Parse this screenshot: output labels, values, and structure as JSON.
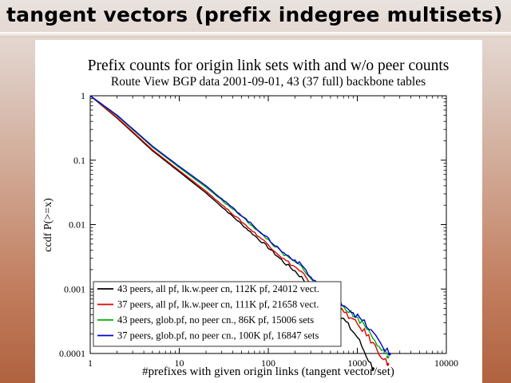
{
  "slide": {
    "title": "tangent vectors (prefix indegree multisets)"
  },
  "chart_data": {
    "type": "line",
    "title": "Prefix counts for origin link sets with and w/o peer counts",
    "subtitle": "Route View BGP data 2001-09-01, 43 (37 full) backbone tables",
    "xlabel": "#prefixes with given origin links (tangent vector/set)",
    "ylabel": "ccdf P(>=x)",
    "xscale": "log",
    "yscale": "log",
    "xlim": [
      1,
      10000
    ],
    "ylim": [
      0.0001,
      1
    ],
    "x_ticks": [
      1,
      10,
      100,
      1000,
      10000
    ],
    "x_tick_labels": [
      "1",
      "10",
      "100",
      "1000",
      "10000"
    ],
    "y_ticks": [
      1,
      0.1,
      0.01,
      0.001,
      0.0001
    ],
    "y_tick_labels": [
      "1",
      "0.1",
      "0.01",
      "0.001",
      "0.0001"
    ],
    "grid": false,
    "legend_position": "bottom-left",
    "series": [
      {
        "name": "43 peers, all pf, lk.w.peer cn, 112K pf, 24012 vect.",
        "color": "#000000",
        "points": [
          [
            1,
            1
          ],
          [
            2,
            0.45
          ],
          [
            5,
            0.14
          ],
          [
            10,
            0.066
          ],
          [
            20,
            0.031
          ],
          [
            50,
            0.0102
          ],
          [
            100,
            0.0044
          ],
          [
            150,
            0.0026
          ],
          [
            200,
            0.0019
          ],
          [
            250,
            0.0014
          ],
          [
            300,
            0.00075
          ],
          [
            400,
            0.00058
          ],
          [
            700,
            0.00034
          ],
          [
            1000,
            0.00018
          ],
          [
            1500,
            5.8e-05
          ]
        ]
      },
      {
        "name": "37 peers, all pf, lk.w.peer cn, 111K pf, 21658 vect.",
        "color": "#e00000",
        "points": [
          [
            1,
            1
          ],
          [
            2,
            0.46
          ],
          [
            5,
            0.145
          ],
          [
            10,
            0.069
          ],
          [
            20,
            0.033
          ],
          [
            50,
            0.0112
          ],
          [
            100,
            0.0049
          ],
          [
            150,
            0.0029
          ],
          [
            200,
            0.0022
          ],
          [
            250,
            0.0017
          ],
          [
            300,
            0.0011
          ],
          [
            500,
            0.00062
          ],
          [
            800,
            0.00038
          ],
          [
            1200,
            0.00022
          ],
          [
            2200,
            6.8e-05
          ]
        ]
      },
      {
        "name": "43 peers, glob.pf, no peer cn., 86K pf, 15006 sets",
        "color": "#00b000",
        "points": [
          [
            1,
            1
          ],
          [
            2,
            0.49
          ],
          [
            5,
            0.16
          ],
          [
            10,
            0.077
          ],
          [
            20,
            0.038
          ],
          [
            50,
            0.0135
          ],
          [
            100,
            0.0058
          ],
          [
            150,
            0.0034
          ],
          [
            200,
            0.0026
          ],
          [
            250,
            0.0021
          ],
          [
            300,
            0.0014
          ],
          [
            500,
            0.0008
          ],
          [
            800,
            0.00046
          ],
          [
            1200,
            0.00028
          ],
          [
            2200,
            8.8e-05
          ]
        ]
      },
      {
        "name": "37 peers, glob.pf, no peer cn., 100K pf, 16847 sets",
        "color": "#0000d0",
        "points": [
          [
            1,
            1
          ],
          [
            2,
            0.5
          ],
          [
            5,
            0.165
          ],
          [
            10,
            0.08
          ],
          [
            20,
            0.04
          ],
          [
            50,
            0.014
          ],
          [
            100,
            0.006
          ],
          [
            150,
            0.0036
          ],
          [
            200,
            0.0028
          ],
          [
            250,
            0.0022
          ],
          [
            300,
            0.0015
          ],
          [
            500,
            0.00085
          ],
          [
            800,
            0.0005
          ],
          [
            1200,
            0.0003
          ],
          [
            2300,
            9.8e-05
          ]
        ]
      }
    ]
  }
}
